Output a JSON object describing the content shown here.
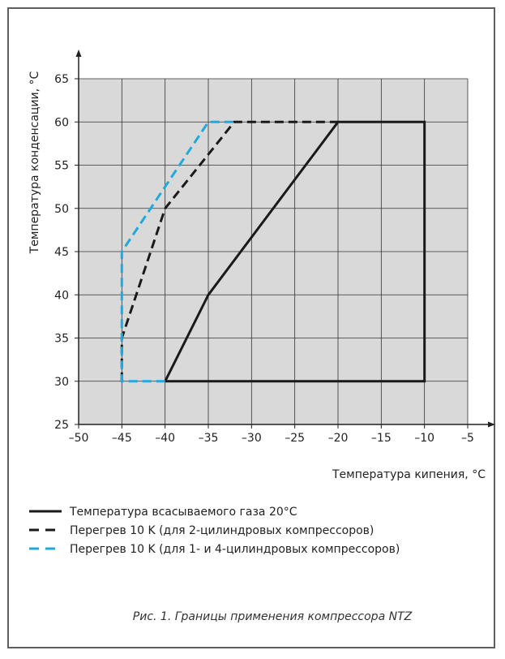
{
  "chart_data": {
    "type": "line",
    "xlim": [
      -50,
      -5
    ],
    "ylim": [
      25,
      65
    ],
    "x_ticks": [
      -50,
      -45,
      -40,
      -35,
      -30,
      -25,
      -20,
      -15,
      -10,
      -5
    ],
    "y_ticks": [
      25,
      30,
      35,
      40,
      45,
      50,
      55,
      60,
      65
    ],
    "x_tick_labels": [
      "–50",
      "–45",
      "–40",
      "–35",
      "–30",
      "–25",
      "–20",
      "–15",
      "–10",
      "–5"
    ],
    "y_tick_labels": [
      "25",
      "30",
      "35",
      "40",
      "45",
      "50",
      "55",
      "60",
      "65"
    ],
    "xlabel": "Температура кипения, °C",
    "ylabel": "Температура конденсации, °C",
    "grid": true,
    "legend_position": "bottom",
    "series": [
      {
        "name": "Температура всасываемого газа 20°C",
        "color": "#1a1a1a",
        "style": "solid",
        "points": [
          [
            -40,
            30
          ],
          [
            -35,
            40
          ],
          [
            -20,
            60
          ],
          [
            -10,
            60
          ],
          [
            -10,
            30
          ],
          [
            -40,
            30
          ]
        ]
      },
      {
        "name": "Перегрев 10 K (для 2-цилиндровых компрессоров)",
        "color": "#1a1a1a",
        "style": "dashed",
        "points": [
          [
            -45,
            30
          ],
          [
            -45,
            35
          ],
          [
            -40,
            50
          ],
          [
            -32,
            60
          ],
          [
            -20,
            60
          ]
        ]
      },
      {
        "name": "Перегрев 10 K (для 1- и 4-цилиндровых компрессоров)",
        "color": "#21a8dc",
        "style": "dashed",
        "points": [
          [
            -40,
            30
          ],
          [
            -45,
            30
          ],
          [
            -45,
            45
          ],
          [
            -35,
            60
          ],
          [
            -32,
            60
          ]
        ]
      }
    ]
  },
  "caption": "Рис. 1. Границы применения компрессора NTZ"
}
